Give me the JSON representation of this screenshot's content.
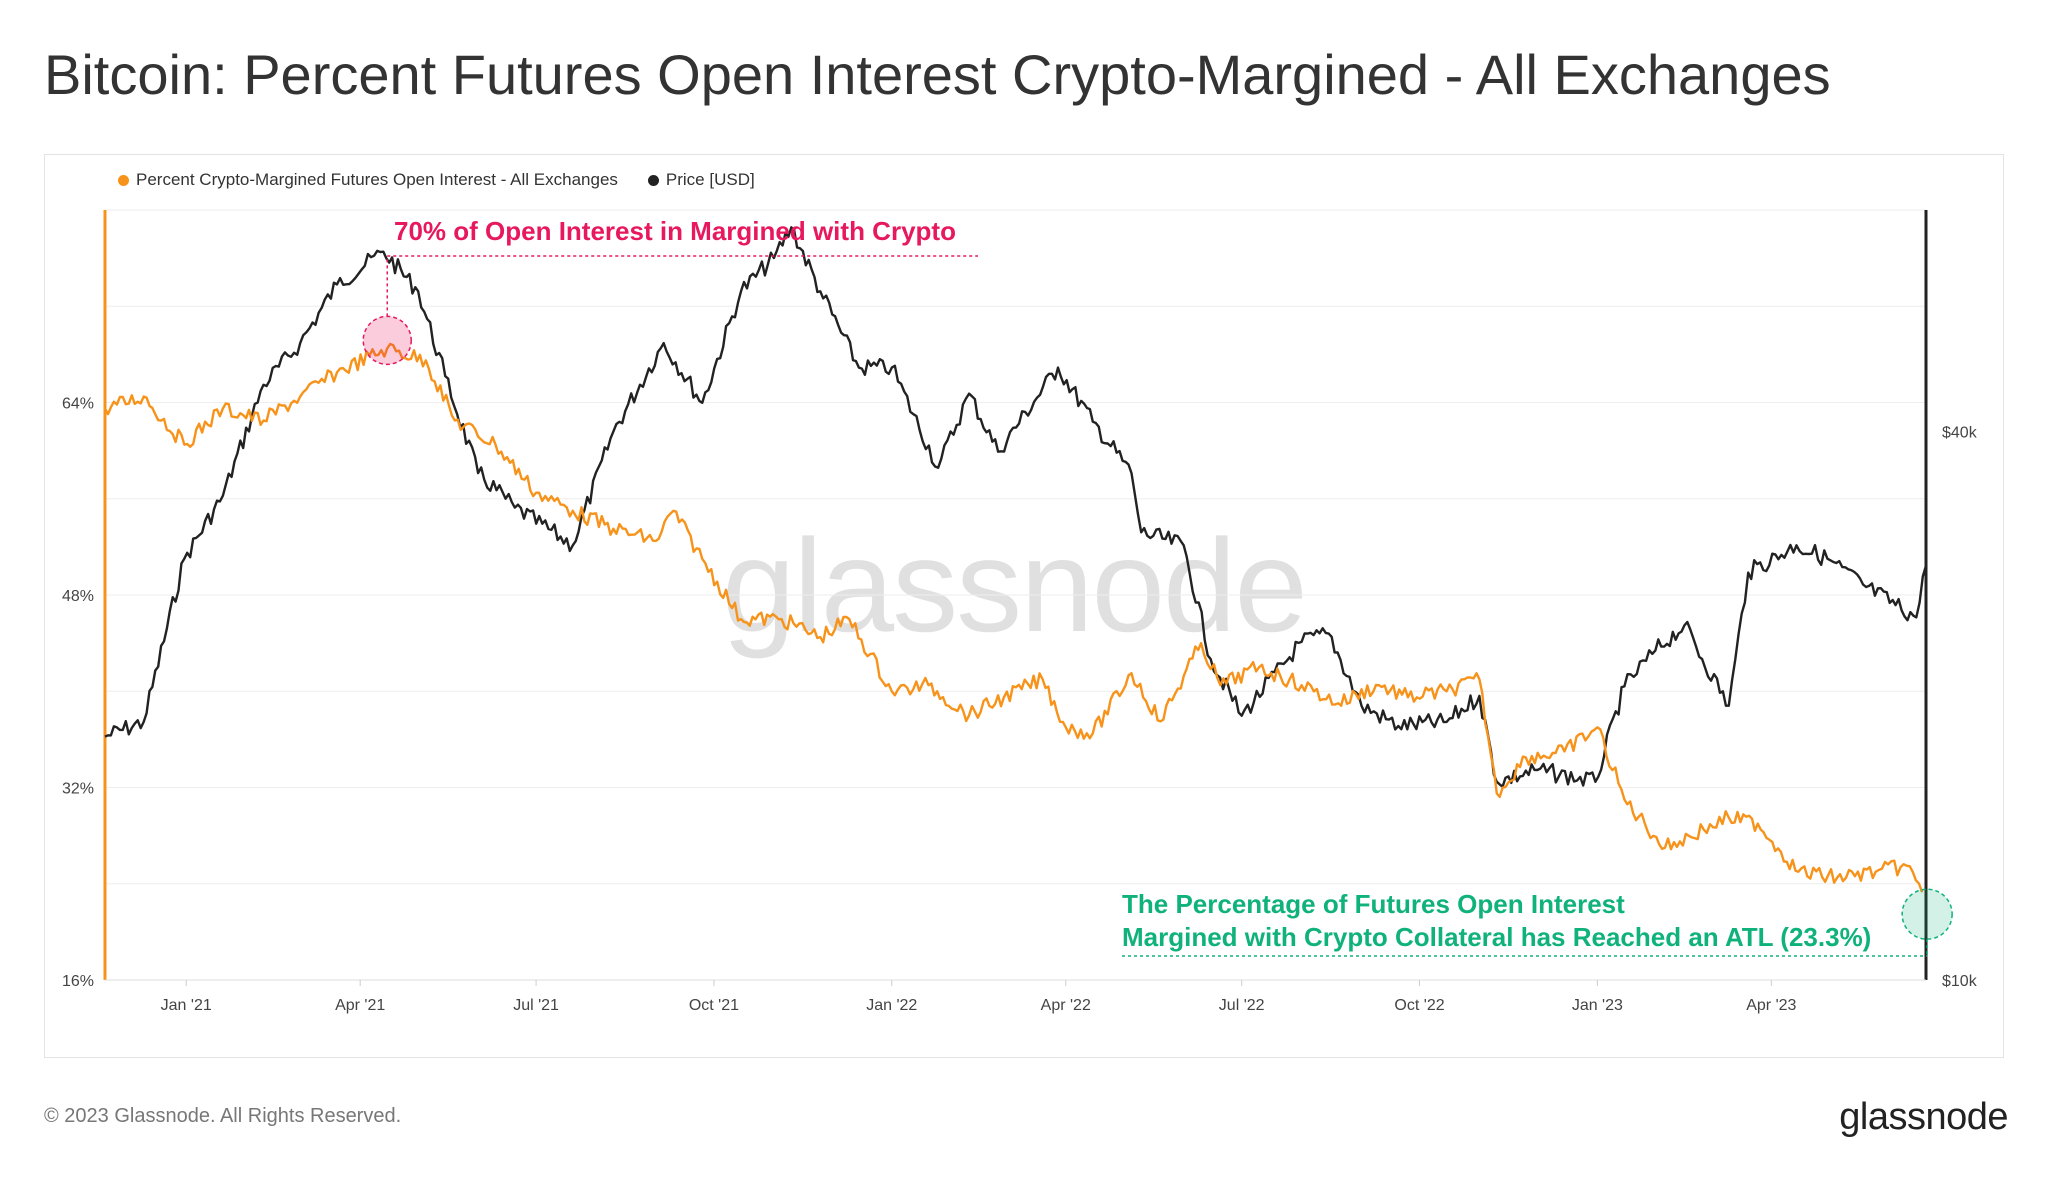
{
  "page": {
    "title": "Bitcoin: Percent Futures Open Interest Crypto-Margined - All Exchanges",
    "watermark": "glassnode",
    "footer_copyright": "© 2023 Glassnode. All Rights Reserved.",
    "footer_logo": "glassnode"
  },
  "chart_data": {
    "type": "line",
    "title": "Bitcoin: Percent Futures Open Interest Crypto-Margined - All Exchanges",
    "legend_position": "top-left",
    "grid": true,
    "x_range": [
      "2020-11-20",
      "2023-06-20"
    ],
    "x_ticks": [
      {
        "label": "Jan '21",
        "date": "2021-01-01"
      },
      {
        "label": "Apr '21",
        "date": "2021-04-01"
      },
      {
        "label": "Jul '21",
        "date": "2021-07-01"
      },
      {
        "label": "Oct '21",
        "date": "2021-10-01"
      },
      {
        "label": "Jan '22",
        "date": "2022-01-01"
      },
      {
        "label": "Apr '22",
        "date": "2022-04-01"
      },
      {
        "label": "Jul '22",
        "date": "2022-07-01"
      },
      {
        "label": "Oct '22",
        "date": "2022-10-01"
      },
      {
        "label": "Jan '23",
        "date": "2023-01-01"
      },
      {
        "label": "Apr '23",
        "date": "2023-04-01"
      }
    ],
    "y_left": {
      "range": [
        16,
        80
      ],
      "ticks": [
        {
          "value": 16,
          "label": "16%"
        },
        {
          "value": 32,
          "label": "32%"
        },
        {
          "value": 48,
          "label": "48%"
        },
        {
          "value": 64,
          "label": "64%"
        }
      ],
      "color": "#f7931a"
    },
    "y_right": {
      "scale": "log",
      "range": [
        10000,
        70000
      ],
      "ticks": [
        {
          "value": 10000,
          "label": "$10k"
        },
        {
          "value": 40000,
          "label": "$40k"
        }
      ],
      "color": "#222222"
    },
    "series": [
      {
        "name": "Percent Crypto-Margined Futures Open Interest - All Exchanges",
        "axis": "left",
        "color": "#f7931a",
        "x": [
          "2020-11-20",
          "2020-12-10",
          "2020-12-31",
          "2021-01-20",
          "2021-02-10",
          "2021-03-01",
          "2021-03-20",
          "2021-04-15",
          "2021-05-05",
          "2021-05-20",
          "2021-06-10",
          "2021-07-01",
          "2021-07-20",
          "2021-08-10",
          "2021-09-01",
          "2021-09-10",
          "2021-09-25",
          "2021-10-15",
          "2021-11-05",
          "2021-11-25",
          "2021-12-10",
          "2022-01-01",
          "2022-01-20",
          "2022-02-10",
          "2022-02-28",
          "2022-03-20",
          "2022-04-01",
          "2022-04-15",
          "2022-05-05",
          "2022-05-20",
          "2022-06-10",
          "2022-06-20",
          "2022-07-10",
          "2022-08-01",
          "2022-08-20",
          "2022-09-10",
          "2022-09-25",
          "2022-10-15",
          "2022-11-01",
          "2022-11-10",
          "2022-11-25",
          "2022-12-15",
          "2023-01-01",
          "2023-01-15",
          "2023-02-05",
          "2023-02-25",
          "2023-03-10",
          "2023-03-25",
          "2023-04-15",
          "2023-05-05",
          "2023-05-25",
          "2023-06-10",
          "2023-06-18"
        ],
        "values": [
          63.5,
          64.5,
          60.5,
          63.5,
          62.5,
          64.5,
          66.5,
          68.5,
          67.5,
          62.5,
          60.5,
          56.5,
          55,
          53.5,
          52.5,
          55,
          51,
          46,
          46,
          44.5,
          46,
          40,
          40.5,
          38,
          39.5,
          41,
          37,
          36.5,
          41.5,
          37.5,
          44,
          40.5,
          42,
          40.5,
          39,
          40.5,
          39.5,
          40,
          41,
          31.5,
          34.5,
          35,
          37,
          31,
          27,
          28.5,
          29.5,
          29,
          25,
          24.5,
          25,
          25.5,
          23.3
        ]
      },
      {
        "name": "Price [USD]",
        "axis": "right",
        "color": "#222222",
        "x": [
          "2020-11-20",
          "2020-12-10",
          "2020-12-31",
          "2021-01-20",
          "2021-02-10",
          "2021-03-01",
          "2021-03-20",
          "2021-04-13",
          "2021-05-01",
          "2021-05-15",
          "2021-06-01",
          "2021-06-20",
          "2021-07-20",
          "2021-08-10",
          "2021-09-05",
          "2021-09-25",
          "2021-10-15",
          "2021-11-01",
          "2021-11-10",
          "2021-11-25",
          "2021-12-15",
          "2022-01-01",
          "2022-01-25",
          "2022-02-10",
          "2022-02-25",
          "2022-03-28",
          "2022-04-15",
          "2022-05-05",
          "2022-05-10",
          "2022-06-01",
          "2022-06-15",
          "2022-07-01",
          "2022-08-01",
          "2022-08-15",
          "2022-09-01",
          "2022-09-20",
          "2022-10-15",
          "2022-11-01",
          "2022-11-10",
          "2022-12-01",
          "2022-12-31",
          "2023-01-15",
          "2023-01-31",
          "2023-02-15",
          "2023-03-10",
          "2023-03-20",
          "2023-04-14",
          "2023-04-30",
          "2023-05-20",
          "2023-06-15",
          "2023-06-20"
        ],
        "values": [
          18500,
          19200,
          29000,
          34000,
          45000,
          50000,
          58000,
          63000,
          57000,
          46000,
          36000,
          33000,
          30000,
          40000,
          50000,
          43000,
          57000,
          62000,
          67000,
          57000,
          47000,
          47000,
          36500,
          44000,
          38000,
          47000,
          41000,
          36000,
          31000,
          30000,
          22500,
          19500,
          23500,
          24000,
          20000,
          19000,
          19200,
          20500,
          16500,
          17000,
          16500,
          21000,
          23000,
          24500,
          20000,
          28000,
          30000,
          29000,
          27000,
          25000,
          28500
        ]
      }
    ],
    "annotations": [
      {
        "text": "70% of Open Interest in Margined with Crypto",
        "color": "#e8185f",
        "date": "2021-04-15",
        "value": 68.5
      },
      {
        "text_lines": [
          "The Percentage of Futures Open Interest",
          "Margined with Crypto Collateral has Reached an ATL (23.3%)"
        ],
        "color": "#10b27c",
        "date": "2023-06-18",
        "value": 23.3
      }
    ]
  }
}
